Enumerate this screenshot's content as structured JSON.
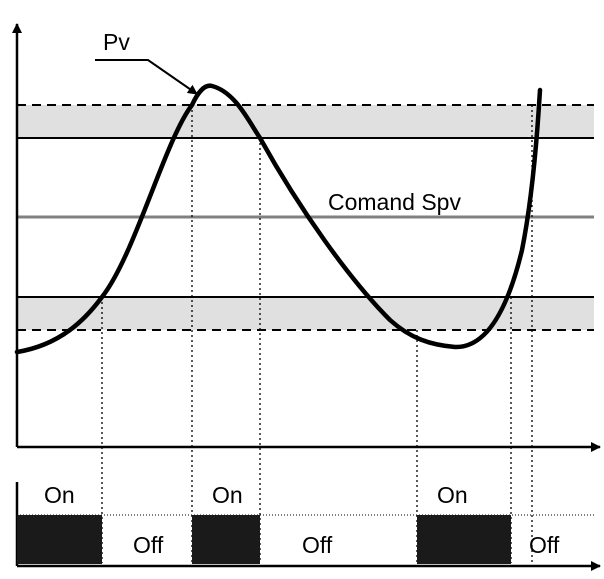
{
  "labels": {
    "pv": "Pv",
    "setpoint": "Comand Spv",
    "output_states": [
      "On",
      "Off",
      "On",
      "Off",
      "On",
      "Off"
    ]
  },
  "colors": {
    "hysteresis_band": "#e0e0e0",
    "setpoint_line": "#808080",
    "curve": "#000000",
    "on_block": "#1a1a1a"
  }
}
